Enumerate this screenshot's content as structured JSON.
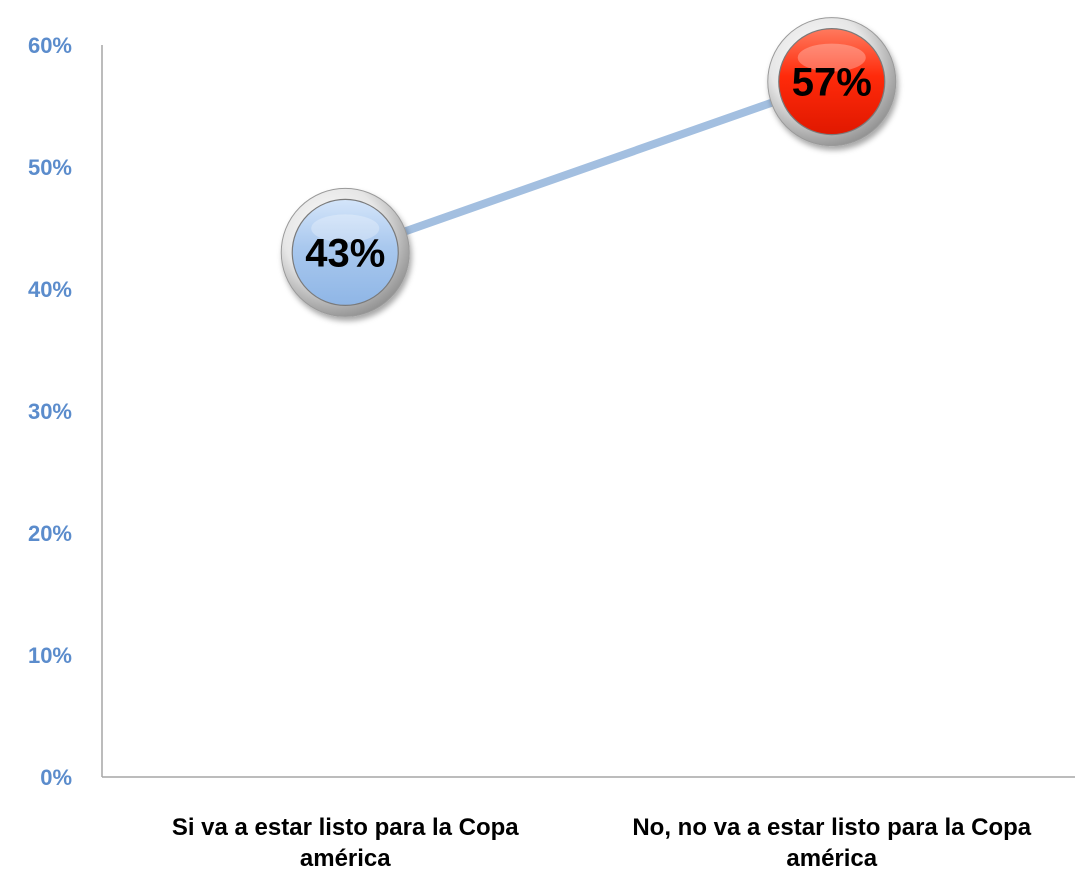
{
  "chart_data": {
    "type": "line",
    "title": "",
    "xlabel": "",
    "ylabel": "",
    "categories": [
      [
        "Si va a estar listo para la Copa",
        "américa"
      ],
      [
        "No, no va a estar listo para la Copa",
        "américa"
      ]
    ],
    "series": [
      {
        "values": [
          0.43,
          0.57
        ],
        "data_labels": [
          "43%",
          "57%"
        ],
        "point_colors": [
          "#a9c8ee",
          "#ff2a0a"
        ],
        "line_color": "#a3bfe0"
      }
    ],
    "ylim": [
      0,
      0.6
    ],
    "y_ticks": [
      0,
      0.1,
      0.2,
      0.3,
      0.4,
      0.5,
      0.6
    ],
    "y_tick_labels": [
      "0%",
      "10%",
      "20%",
      "30%",
      "40%",
      "50%",
      "60%"
    ],
    "y_tick_color": "#5b8ccc",
    "axis_color": "#a6a6a6",
    "grid": false,
    "legend": "none"
  }
}
